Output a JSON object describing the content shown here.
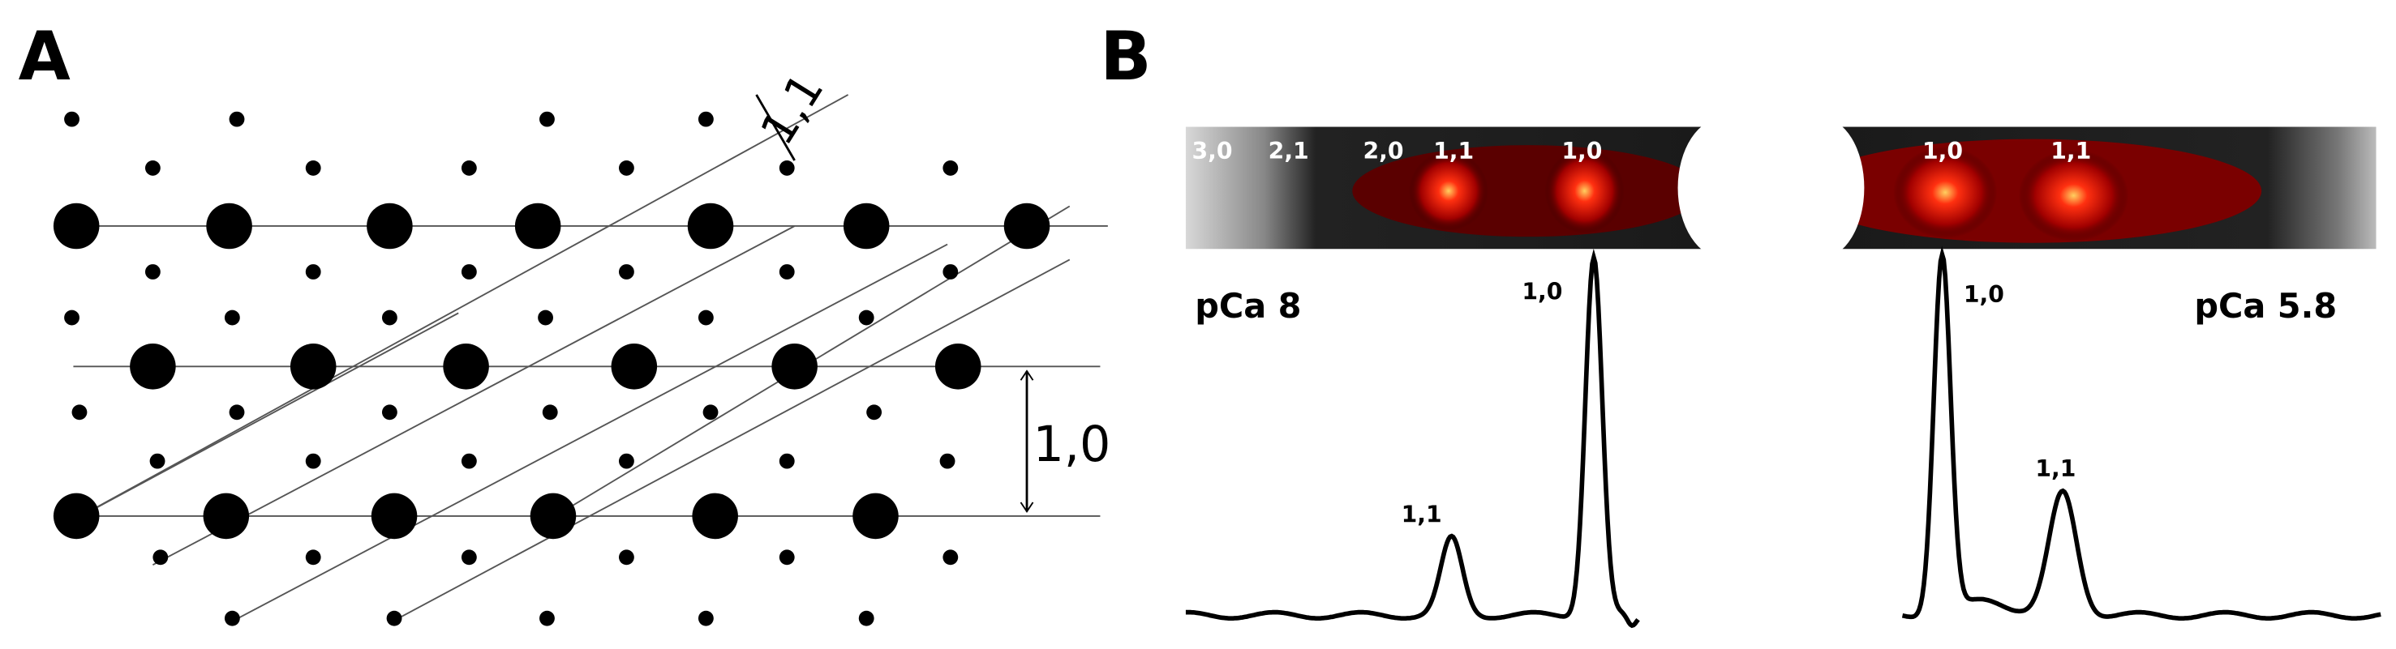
{
  "panel_a": {
    "label": "A",
    "spacing_11": "1,1",
    "spacing_10": "1,0"
  },
  "panel_b": {
    "label": "B",
    "left_image_labels": [
      "3,0",
      "2,1",
      "2,0",
      "1,1",
      "1,0"
    ],
    "right_image_labels": [
      "1,0",
      "1,1"
    ],
    "left_trace": {
      "condition": "pCa 8",
      "peak_10": "1,0",
      "peak_11": "1,1"
    },
    "right_trace": {
      "condition": "pCa 5.8",
      "peak_10": "1,0",
      "peak_11": "1,1"
    }
  }
}
